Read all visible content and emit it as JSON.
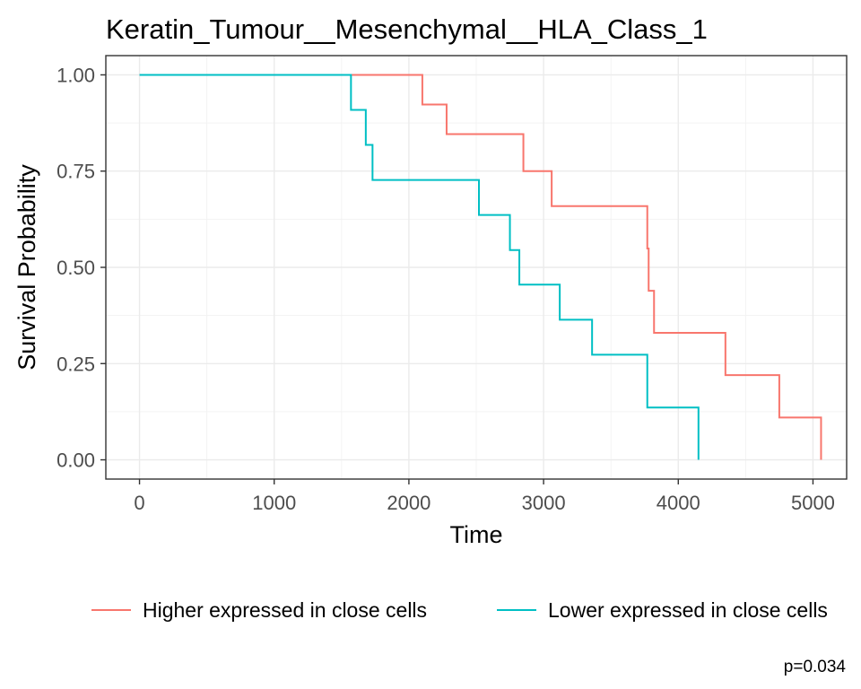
{
  "chart_data": {
    "type": "line",
    "step": true,
    "title": "Keratin_Tumour__Mesenchymal__HLA_Class_1",
    "xlabel": "Time",
    "ylabel": "Survival Probability",
    "xlim": [
      -250,
      5250
    ],
    "ylim": [
      -0.05,
      1.05
    ],
    "xticks": [
      0,
      1000,
      2000,
      3000,
      4000,
      5000
    ],
    "xtick_labels": [
      "0",
      "1000",
      "2000",
      "3000",
      "4000",
      "5000"
    ],
    "yticks": [
      0,
      0.25,
      0.5,
      0.75,
      1.0
    ],
    "ytick_labels": [
      "0.00",
      "0.25",
      "0.50",
      "0.75",
      "1.00"
    ],
    "grid": true,
    "legend_position": "bottom",
    "annotation": "p=0.034",
    "series": [
      {
        "name": "Higher expressed in close cells",
        "color": "#F8766D",
        "x": [
          0,
          2100,
          2280,
          2850,
          3060,
          3770,
          3780,
          3800,
          3820,
          4350,
          4750,
          5060
        ],
        "y": [
          1.0,
          0.923,
          0.846,
          0.75,
          0.659,
          0.549,
          0.439,
          0.439,
          0.33,
          0.22,
          0.11,
          0.0
        ]
      },
      {
        "name": "Lower expressed in close cells",
        "color": "#00BFC4",
        "x": [
          0,
          1570,
          1680,
          1730,
          2520,
          2750,
          2820,
          3120,
          3360,
          3770,
          4150
        ],
        "y": [
          1.0,
          0.909,
          0.818,
          0.727,
          0.636,
          0.545,
          0.455,
          0.364,
          0.273,
          0.136,
          0.0
        ]
      }
    ]
  }
}
